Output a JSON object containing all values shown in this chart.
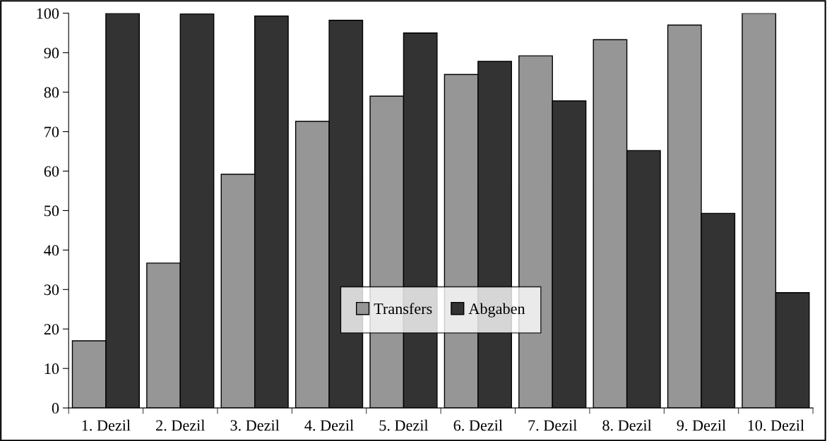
{
  "chart_data": {
    "type": "bar",
    "categories": [
      "1. Dezil",
      "2. Dezil",
      "3. Dezil",
      "4. Dezil",
      "5. Dezil",
      "6. Dezil",
      "7. Dezil",
      "8. Dezil",
      "9. Dezil",
      "10. Dezil"
    ],
    "series": [
      {
        "name": "Transfers",
        "color": "#969696",
        "values": [
          17,
          36.7,
          59.2,
          72.6,
          79,
          84.5,
          89.2,
          93.3,
          97,
          100
        ]
      },
      {
        "name": "Abgaben",
        "color": "#333333",
        "values": [
          100,
          99.8,
          99.3,
          98.2,
          95,
          87.8,
          77.8,
          65.2,
          49.3,
          29.2
        ]
      }
    ],
    "ylim": [
      0,
      100
    ],
    "yticks": [
      0,
      10,
      20,
      30,
      40,
      50,
      60,
      70,
      80,
      90,
      100
    ],
    "grid": false,
    "legend": "bottom"
  }
}
